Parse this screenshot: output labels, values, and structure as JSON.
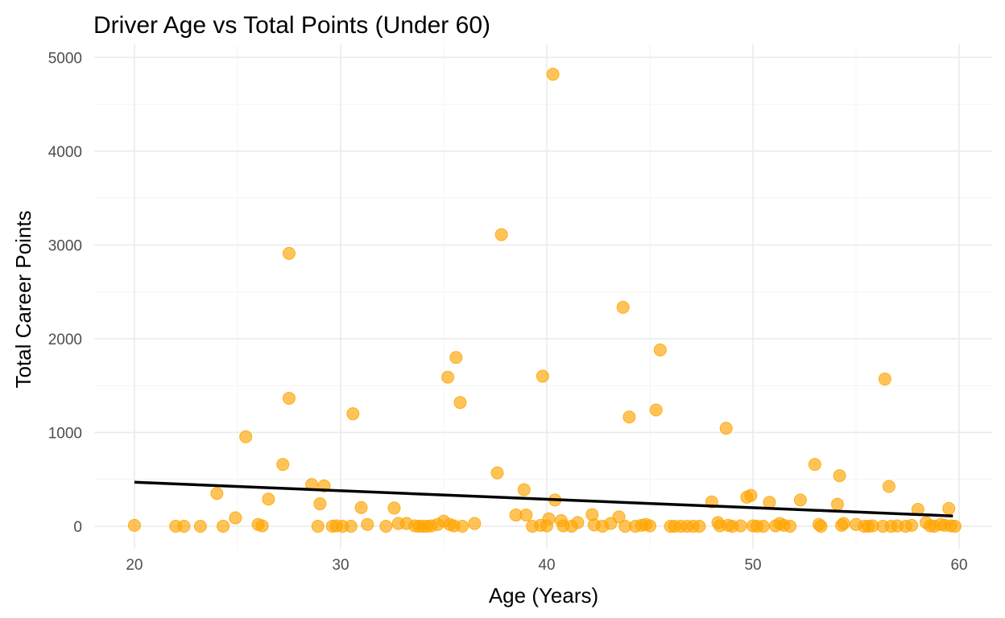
{
  "chart_data": {
    "type": "scatter",
    "title": "Driver Age vs Total Points (Under 60)",
    "xlabel": "Age (Years)",
    "ylabel": "Total Career Points",
    "xlim": [
      18.05,
      61.6
    ],
    "ylim": [
      -240,
      5140
    ],
    "x_ticks": [
      20,
      30,
      40,
      50,
      60
    ],
    "y_ticks": [
      0,
      1000,
      2000,
      3000,
      4000,
      5000
    ],
    "grid": true,
    "legend": "none",
    "point_color": "#FFA500",
    "trend_color": "#000000",
    "trend_line": {
      "x": [
        20,
        59.7
      ],
      "y": [
        470,
        110
      ]
    },
    "points": [
      [
        20,
        10
      ],
      [
        22,
        0
      ],
      [
        22.4,
        0
      ],
      [
        23.2,
        0
      ],
      [
        24,
        350
      ],
      [
        24.3,
        0
      ],
      [
        24.9,
        90
      ],
      [
        25.4,
        955
      ],
      [
        26,
        20
      ],
      [
        26.2,
        5
      ],
      [
        26.5,
        290
      ],
      [
        27.2,
        660
      ],
      [
        27.5,
        1365
      ],
      [
        27.5,
        2910
      ],
      [
        28.6,
        445
      ],
      [
        28.9,
        0
      ],
      [
        29,
        240
      ],
      [
        29.2,
        430
      ],
      [
        29.6,
        0
      ],
      [
        29.8,
        5
      ],
      [
        30.1,
        0
      ],
      [
        30.5,
        0
      ],
      [
        30.6,
        1200
      ],
      [
        31,
        200
      ],
      [
        31.3,
        20
      ],
      [
        32.2,
        0
      ],
      [
        32.6,
        195
      ],
      [
        32.8,
        30
      ],
      [
        33.2,
        30
      ],
      [
        33.6,
        5
      ],
      [
        33.8,
        0
      ],
      [
        34,
        0
      ],
      [
        34.2,
        0
      ],
      [
        34.4,
        5
      ],
      [
        34.7,
        20
      ],
      [
        35,
        55
      ],
      [
        35.2,
        1590
      ],
      [
        35.3,
        20
      ],
      [
        35.5,
        5
      ],
      [
        35.6,
        1800
      ],
      [
        35.8,
        1320
      ],
      [
        35.9,
        0
      ],
      [
        36.5,
        30
      ],
      [
        37.6,
        570
      ],
      [
        37.8,
        3110
      ],
      [
        38.5,
        120
      ],
      [
        38.9,
        390
      ],
      [
        39,
        120
      ],
      [
        39.3,
        0
      ],
      [
        39.7,
        10
      ],
      [
        39.8,
        1600
      ],
      [
        40,
        5
      ],
      [
        40.1,
        80
      ],
      [
        40.3,
        4820
      ],
      [
        40.4,
        280
      ],
      [
        40.7,
        60
      ],
      [
        40.8,
        5
      ],
      [
        41.2,
        0
      ],
      [
        41.5,
        40
      ],
      [
        42.2,
        125
      ],
      [
        42.3,
        15
      ],
      [
        42.7,
        0
      ],
      [
        43.1,
        30
      ],
      [
        43.5,
        100
      ],
      [
        43.7,
        2335
      ],
      [
        43.8,
        0
      ],
      [
        44,
        1165
      ],
      [
        44.3,
        0
      ],
      [
        44.6,
        10
      ],
      [
        44.8,
        20
      ],
      [
        45,
        5
      ],
      [
        45.3,
        1240
      ],
      [
        45.5,
        1880
      ],
      [
        46,
        0
      ],
      [
        46.2,
        0
      ],
      [
        46.5,
        0
      ],
      [
        46.8,
        0
      ],
      [
        47.1,
        0
      ],
      [
        47.4,
        0
      ],
      [
        48,
        260
      ],
      [
        48.3,
        40
      ],
      [
        48.4,
        5
      ],
      [
        48.7,
        1045
      ],
      [
        48.8,
        10
      ],
      [
        49,
        0
      ],
      [
        49.4,
        5
      ],
      [
        49.7,
        310
      ],
      [
        49.9,
        330
      ],
      [
        50,
        5
      ],
      [
        50.2,
        0
      ],
      [
        50.5,
        0
      ],
      [
        50.8,
        255
      ],
      [
        51.1,
        5
      ],
      [
        51.3,
        30
      ],
      [
        51.5,
        10
      ],
      [
        51.8,
        0
      ],
      [
        52.3,
        280
      ],
      [
        53,
        660
      ],
      [
        53.2,
        20
      ],
      [
        53.3,
        0
      ],
      [
        54.1,
        235
      ],
      [
        54.2,
        540
      ],
      [
        54.3,
        10
      ],
      [
        54.4,
        30
      ],
      [
        55,
        20
      ],
      [
        55.4,
        0
      ],
      [
        55.6,
        0
      ],
      [
        55.8,
        5
      ],
      [
        56.3,
        0
      ],
      [
        56.4,
        1570
      ],
      [
        56.6,
        425
      ],
      [
        56.7,
        0
      ],
      [
        57,
        5
      ],
      [
        57.4,
        0
      ],
      [
        57.7,
        10
      ],
      [
        58,
        180
      ],
      [
        58.4,
        40
      ],
      [
        58.6,
        5
      ],
      [
        58.8,
        0
      ],
      [
        59.1,
        20
      ],
      [
        59.3,
        10
      ],
      [
        59.5,
        190
      ],
      [
        59.6,
        5
      ],
      [
        59.8,
        0
      ]
    ]
  }
}
